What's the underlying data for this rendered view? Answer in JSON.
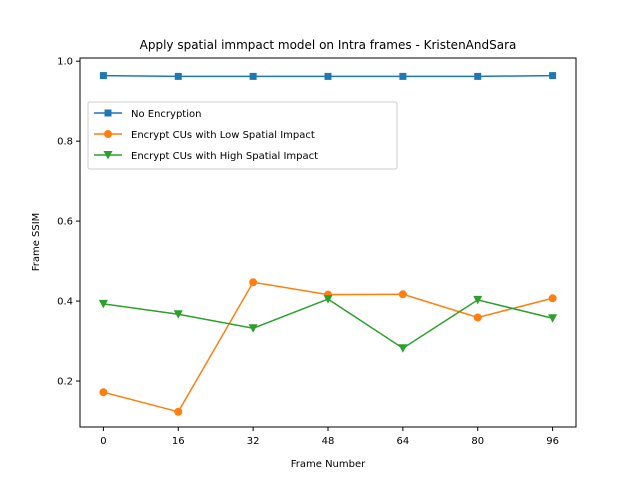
{
  "chart_data": {
    "type": "line",
    "title": "Apply spatial immpact model on Intra frames - KristenAndSara",
    "xlabel": "Frame Number",
    "ylabel": "Frame SSIM",
    "x": [
      0,
      16,
      32,
      48,
      64,
      80,
      96
    ],
    "xlim": [
      -5,
      101
    ],
    "ylim": [
      0.085,
      1.008
    ],
    "xticks": [
      "0",
      "16",
      "32",
      "48",
      "64",
      "80",
      "96"
    ],
    "yticks": [
      "0.2",
      "0.4",
      "0.6",
      "0.8",
      "1.0"
    ],
    "grid": false,
    "legend_position": "upper-left",
    "series": [
      {
        "name": "No Encryption",
        "color": "#1f77b4",
        "marker": "square",
        "values": [
          0.964,
          0.962,
          0.962,
          0.962,
          0.962,
          0.962,
          0.964
        ]
      },
      {
        "name": "Encrypt CUs with Low Spatial Impact",
        "color": "#ff7f0e",
        "marker": "circle",
        "values": [
          0.172,
          0.123,
          0.447,
          0.416,
          0.417,
          0.359,
          0.407
        ]
      },
      {
        "name": "Encrypt CUs with High Spatial Impact",
        "color": "#2ca02c",
        "marker": "triangle-down",
        "values": [
          0.393,
          0.367,
          0.332,
          0.405,
          0.282,
          0.403,
          0.357
        ]
      }
    ]
  }
}
